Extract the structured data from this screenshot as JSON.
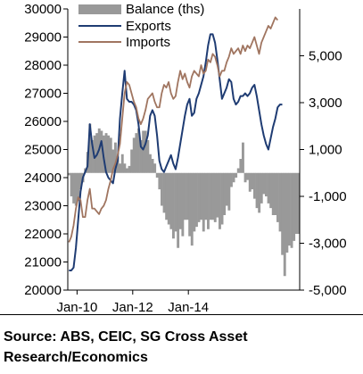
{
  "chart_data": {
    "type": "line",
    "title": "",
    "xlabel": "",
    "ylabel": "",
    "x_tick_labels": [
      "Jan-10",
      "Jan-12",
      "Jan-14"
    ],
    "left_axis": {
      "ylim": [
        20000,
        30000
      ],
      "ticks": [
        20000,
        21000,
        22000,
        23000,
        24000,
        25000,
        26000,
        27000,
        28000,
        29000,
        30000
      ]
    },
    "right_axis": {
      "ylim": [
        -5000,
        7000
      ],
      "ticks": [
        -5000,
        -3000,
        -1000,
        1000,
        3000,
        5000
      ],
      "tick_labels": [
        "-5,000",
        "-3,000",
        "-1,000",
        "1,000",
        "3,000",
        "5,000"
      ]
    },
    "legend_position": "top",
    "grid": false,
    "x_start": "2009-09",
    "series": [
      {
        "name": "Balance (ths)",
        "kind": "bar",
        "axis": "right",
        "color": "#999999",
        "values": [
          -100,
          -1000,
          -1300,
          -1400,
          -1200,
          -700,
          -400,
          200,
          900,
          2100,
          1400,
          1600,
          1700,
          1900,
          1800,
          1600,
          1700,
          1600,
          1500,
          1000,
          1300,
          700,
          400,
          800,
          400,
          200,
          300,
          1000,
          1500,
          1700,
          1900,
          1400,
          1800,
          1800,
          1400,
          800,
          600,
          400,
          -200,
          -700,
          -1400,
          -1700,
          -2000,
          -2200,
          -2400,
          -2800,
          -2500,
          -3200,
          -2400,
          -2700,
          -2000,
          -2000,
          -2700,
          -3100,
          -2500,
          -2300,
          -2100,
          -2000,
          -2500,
          -2000,
          -2400,
          -2000,
          -2000,
          -2100,
          -1900,
          -2400,
          -2200,
          -1800,
          -1400,
          -1600,
          -600,
          -400,
          -200,
          200,
          600,
          1300,
          -400,
          -300,
          -800,
          -700,
          -1100,
          -1500,
          -1700,
          -1300,
          -900,
          -1000,
          -1300,
          -1500,
          -1800,
          -1800,
          -2100,
          -2500,
          -3500,
          -4400,
          -3400,
          -3100,
          -3200,
          -2900,
          -2600,
          -2600
        ]
      },
      {
        "name": "Exports",
        "kind": "line",
        "axis": "left",
        "color": "#1f3c73",
        "values": [
          20700,
          20700,
          20800,
          21500,
          22500,
          23500,
          24000,
          24200,
          24400,
          25900,
          25200,
          24700,
          24800,
          25000,
          25300,
          24700,
          24200,
          24000,
          23900,
          23800,
          24300,
          24600,
          26100,
          27000,
          27800,
          26800,
          26700,
          26700,
          26600,
          26400,
          25900,
          25100,
          25000,
          25200,
          25500,
          26200,
          26400,
          26200,
          25500,
          24600,
          24300,
          24200,
          24400,
          24600,
          24800,
          24500,
          24300,
          24700,
          25200,
          25700,
          26200,
          26600,
          26800,
          26200,
          26300,
          26800,
          27000,
          27300,
          27600,
          28100,
          28700,
          29100,
          29100,
          28800,
          28200,
          27500,
          26800,
          27000,
          27200,
          27500,
          27400,
          26800,
          26600,
          26700,
          26900,
          26900,
          27000,
          26900,
          27000,
          27200,
          27300,
          26900,
          26400,
          25900,
          25500,
          25200,
          25000,
          25400,
          25800,
          26100,
          26500,
          26600,
          26600
        ]
      },
      {
        "name": "Imports",
        "kind": "line",
        "axis": "left",
        "color": "#a07560",
        "values": [
          21700,
          21900,
          22300,
          22900,
          23300,
          23200,
          22600,
          22600,
          23200,
          23600,
          22900,
          22900,
          22800,
          22700,
          22900,
          23000,
          23200,
          23600,
          23900,
          24300,
          24500,
          24800,
          25200,
          26100,
          27000,
          27400,
          27300,
          27000,
          26700,
          26500,
          26100,
          25900,
          26100,
          26400,
          26800,
          26900,
          27000,
          26700,
          26500,
          26500,
          27000,
          27300,
          27200,
          27400,
          27000,
          26800,
          26900,
          27400,
          27800,
          27500,
          27700,
          27400,
          27200,
          27600,
          27800,
          27700,
          27600,
          28000,
          27700,
          27800,
          28200,
          28100,
          28400,
          28300,
          28000,
          27600,
          27800,
          27800,
          28100,
          28300,
          28600,
          28400,
          28500,
          28600,
          28400,
          28700,
          28500,
          28700,
          28600,
          28800,
          29000,
          28700,
          28400,
          28800,
          29000,
          29200,
          29400,
          29300,
          29500,
          29700,
          29600
        ]
      }
    ]
  },
  "footer": {
    "source_line1": "Source: ABS, CEIC, SG Cross Asset",
    "source_line2": "Research/Economics"
  }
}
